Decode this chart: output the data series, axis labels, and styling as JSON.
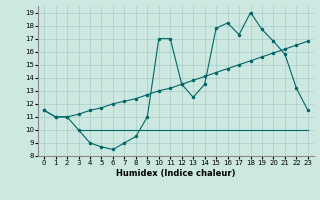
{
  "xlabel": "Humidex (Indice chaleur)",
  "bg_color": "#cce8e0",
  "grid_color": "#aacccc",
  "line_color": "#006666",
  "xlim": [
    -0.5,
    23.5
  ],
  "ylim": [
    8,
    19.5
  ],
  "xticks": [
    0,
    1,
    2,
    3,
    4,
    5,
    6,
    7,
    8,
    9,
    10,
    11,
    12,
    13,
    14,
    15,
    16,
    17,
    18,
    19,
    20,
    21,
    22,
    23
  ],
  "yticks": [
    8,
    9,
    10,
    11,
    12,
    13,
    14,
    15,
    16,
    17,
    18,
    19
  ],
  "line1_x": [
    0,
    1,
    2,
    3,
    4,
    5,
    6,
    7,
    8,
    9,
    10,
    11,
    12,
    13,
    14,
    15,
    16,
    17,
    18,
    19,
    20,
    21,
    22,
    23
  ],
  "line1_y": [
    11.5,
    11.0,
    11.0,
    10.0,
    9.0,
    8.7,
    8.5,
    9.0,
    9.5,
    11.0,
    17.0,
    17.0,
    13.5,
    12.5,
    13.5,
    17.8,
    18.2,
    17.3,
    19.0,
    17.7,
    16.8,
    15.8,
    13.2,
    11.5
  ],
  "line2_x": [
    0,
    1,
    2,
    3,
    4,
    5,
    6,
    7,
    8,
    9,
    10,
    11,
    12,
    13,
    14,
    15,
    16,
    17,
    18,
    19,
    20,
    21,
    22,
    23
  ],
  "line2_y": [
    11.5,
    11.0,
    11.0,
    11.2,
    11.5,
    11.7,
    12.0,
    12.2,
    12.4,
    12.7,
    13.0,
    13.2,
    13.5,
    13.8,
    14.1,
    14.4,
    14.7,
    15.0,
    15.3,
    15.6,
    15.9,
    16.2,
    16.5,
    16.8
  ],
  "line3_x": [
    3,
    23
  ],
  "line3_y": [
    10.0,
    10.0
  ]
}
